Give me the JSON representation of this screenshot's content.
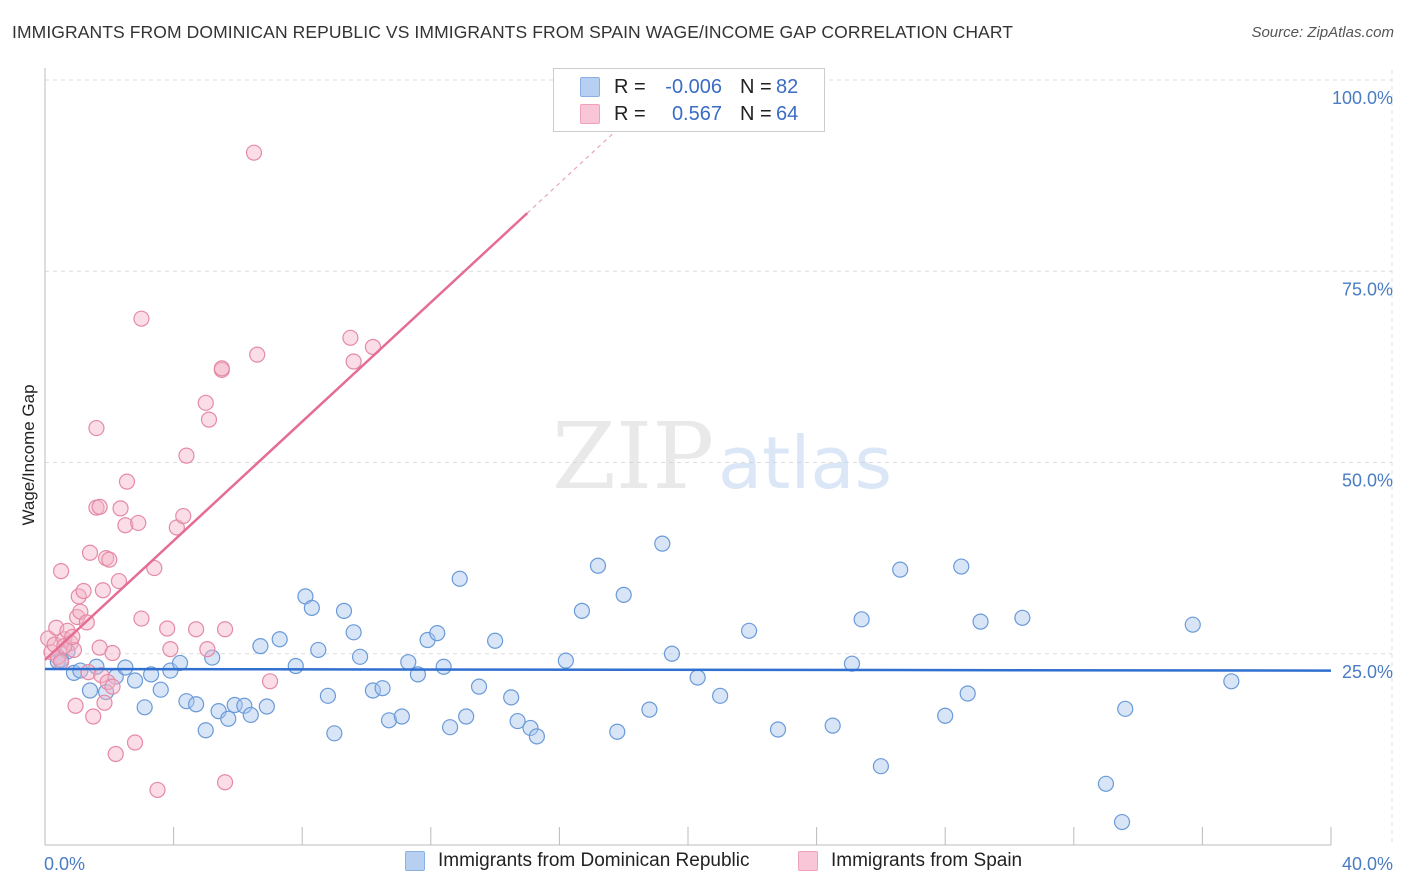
{
  "title": "IMMIGRANTS FROM DOMINICAN REPUBLIC VS IMMIGRANTS FROM SPAIN WAGE/INCOME GAP CORRELATION CHART",
  "source": "Source: ZipAtlas.com",
  "watermark": {
    "zip": "ZIP",
    "atlas": "atlas"
  },
  "legend": {
    "rows": [
      {
        "r_label": "R =",
        "r_value": "-0.006",
        "n_label": "N =",
        "n_value": "82",
        "color": "#a9c6ee"
      },
      {
        "r_label": "R =",
        "r_value": "0.567",
        "n_label": "N =",
        "n_value": "64",
        "color": "#f4b3c8"
      }
    ]
  },
  "bottom_legend": [
    {
      "label": "Immigrants from Dominican Republic",
      "color": "#a9c6ee"
    },
    {
      "label": "Immigrants from Spain",
      "color": "#f4b3c8"
    }
  ],
  "chart_data": {
    "type": "scatter",
    "title": "IMMIGRANTS FROM DOMINICAN REPUBLIC VS IMMIGRANTS FROM SPAIN WAGE/INCOME GAP CORRELATION CHART",
    "xlabel": "",
    "ylabel": "Wage/Income Gap",
    "xlim": [
      0,
      40
    ],
    "ylim": [
      0,
      100
    ],
    "x_tick_labels": [
      "0.0%",
      "40.0%"
    ],
    "y_tick_labels": [
      "100.0%",
      "75.0%",
      "50.0%",
      "25.0%"
    ],
    "y_ticks": [
      100,
      75,
      50,
      25
    ],
    "grid": "horizontal dashed",
    "series": [
      {
        "name": "Immigrants from Dominican Republic",
        "color": "#6a9ad8",
        "fill": "#a9c6ee",
        "trend": {
          "x0": 0,
          "y0": 23.0,
          "x1": 40,
          "y1": 22.8
        },
        "points": [
          [
            0.4,
            24
          ],
          [
            0.7,
            25.3
          ],
          [
            0.9,
            22.5
          ],
          [
            1.1,
            22.8
          ],
          [
            1.4,
            20.2
          ],
          [
            1.6,
            23.3
          ],
          [
            1.9,
            20
          ],
          [
            2.2,
            22
          ],
          [
            2.5,
            23.2
          ],
          [
            2.8,
            21.5
          ],
          [
            3.1,
            18
          ],
          [
            3.3,
            22.3
          ],
          [
            3.6,
            20.3
          ],
          [
            3.9,
            22.8
          ],
          [
            4.2,
            23.8
          ],
          [
            4.4,
            18.8
          ],
          [
            4.7,
            18.4
          ],
          [
            5.0,
            15
          ],
          [
            5.2,
            24.5
          ],
          [
            5.4,
            17.5
          ],
          [
            5.7,
            16.5
          ],
          [
            5.9,
            18.3
          ],
          [
            6.2,
            18.2
          ],
          [
            6.4,
            17
          ],
          [
            6.7,
            26
          ],
          [
            6.9,
            18.1
          ],
          [
            7.3,
            26.9
          ],
          [
            7.8,
            23.4
          ],
          [
            8.1,
            32.5
          ],
          [
            8.3,
            31
          ],
          [
            8.5,
            25.5
          ],
          [
            8.8,
            19.5
          ],
          [
            9.0,
            14.6
          ],
          [
            9.3,
            30.6
          ],
          [
            9.6,
            27.8
          ],
          [
            9.8,
            24.6
          ],
          [
            10.2,
            20.2
          ],
          [
            10.5,
            20.5
          ],
          [
            10.7,
            16.3
          ],
          [
            11.1,
            16.8
          ],
          [
            11.3,
            23.9
          ],
          [
            11.6,
            22.3
          ],
          [
            11.9,
            26.8
          ],
          [
            12.2,
            27.7
          ],
          [
            12.4,
            23.3
          ],
          [
            12.6,
            15.4
          ],
          [
            12.9,
            34.8
          ],
          [
            13.1,
            16.8
          ],
          [
            13.5,
            20.7
          ],
          [
            14.0,
            26.7
          ],
          [
            14.5,
            19.3
          ],
          [
            14.7,
            16.2
          ],
          [
            15.1,
            15.3
          ],
          [
            15.3,
            14.2
          ],
          [
            16.2,
            24.1
          ],
          [
            16.7,
            30.6
          ],
          [
            17.2,
            36.5
          ],
          [
            17.8,
            14.8
          ],
          [
            18.0,
            32.7
          ],
          [
            18.8,
            17.7
          ],
          [
            19.2,
            39.4
          ],
          [
            19.5,
            25.0
          ],
          [
            20.3,
            21.9
          ],
          [
            21.0,
            19.5
          ],
          [
            21.9,
            28.0
          ],
          [
            22.8,
            15.1
          ],
          [
            24.5,
            15.6
          ],
          [
            25.1,
            23.7
          ],
          [
            25.4,
            29.5
          ],
          [
            26.0,
            10.3
          ],
          [
            26.6,
            36.0
          ],
          [
            28.0,
            16.9
          ],
          [
            28.5,
            36.4
          ],
          [
            28.7,
            19.8
          ],
          [
            29.1,
            29.2
          ],
          [
            30.4,
            29.7
          ],
          [
            33.0,
            8
          ],
          [
            33.5,
            3
          ],
          [
            33.6,
            17.8
          ],
          [
            35.7,
            28.8
          ],
          [
            36.9,
            21.4
          ],
          [
            0.5,
            24.2
          ]
        ]
      },
      {
        "name": "Immigrants from Spain",
        "color": "#e58aa6",
        "fill": "#f4b3c8",
        "trend": {
          "x0": 0,
          "y0": 24.2,
          "x1": 15,
          "y1": 82.6
        },
        "trend_extension": {
          "x0": 15,
          "y0": 82.6,
          "x1": 18.1,
          "y1": 94.7
        },
        "points": [
          [
            0.1,
            27
          ],
          [
            0.2,
            25.2
          ],
          [
            0.3,
            26.2
          ],
          [
            0.35,
            28.4
          ],
          [
            0.4,
            24.6
          ],
          [
            0.5,
            23.9
          ],
          [
            0.6,
            26.9
          ],
          [
            0.7,
            28
          ],
          [
            0.8,
            26.4
          ],
          [
            0.9,
            25.5
          ],
          [
            0.5,
            35.8
          ],
          [
            0.6,
            26
          ],
          [
            0.85,
            27.2
          ],
          [
            0.95,
            18.2
          ],
          [
            1.0,
            29.8
          ],
          [
            1.05,
            32.5
          ],
          [
            1.1,
            30.5
          ],
          [
            1.2,
            33.2
          ],
          [
            1.3,
            29.1
          ],
          [
            1.35,
            22.6
          ],
          [
            1.4,
            38.2
          ],
          [
            1.5,
            16.8
          ],
          [
            1.6,
            54.5
          ],
          [
            1.6,
            44.1
          ],
          [
            1.7,
            25.8
          ],
          [
            1.75,
            22.2
          ],
          [
            1.8,
            33.3
          ],
          [
            1.85,
            18.6
          ],
          [
            1.9,
            37.5
          ],
          [
            1.95,
            21.3
          ],
          [
            2.0,
            37.3
          ],
          [
            2.1,
            25.1
          ],
          [
            2.1,
            20.7
          ],
          [
            2.2,
            11.9
          ],
          [
            2.3,
            34.5
          ],
          [
            2.35,
            44
          ],
          [
            2.5,
            41.8
          ],
          [
            2.55,
            47.5
          ],
          [
            2.9,
            42.1
          ],
          [
            2.8,
            13.4
          ],
          [
            3.0,
            68.8
          ],
          [
            3.0,
            29.6
          ],
          [
            3.4,
            36.2
          ],
          [
            3.5,
            7.2
          ],
          [
            3.8,
            28.3
          ],
          [
            3.9,
            25.6
          ],
          [
            4.1,
            41.5
          ],
          [
            4.3,
            43
          ],
          [
            4.4,
            50.9
          ],
          [
            4.7,
            28.2
          ],
          [
            5.0,
            57.8
          ],
          [
            5.05,
            25.6
          ],
          [
            5.1,
            55.6
          ],
          [
            5.5,
            62.1
          ],
          [
            5.5,
            62.3
          ],
          [
            5.6,
            28.2
          ],
          [
            5.6,
            8.2
          ],
          [
            6.5,
            90.5
          ],
          [
            6.6,
            64.1
          ],
          [
            7.0,
            21.4
          ],
          [
            9.5,
            66.3
          ],
          [
            9.6,
            63.2
          ],
          [
            10.2,
            65.1
          ],
          [
            1.7,
            44.2
          ]
        ]
      }
    ]
  }
}
